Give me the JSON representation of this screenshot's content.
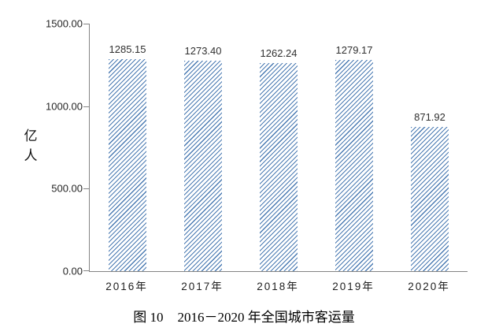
{
  "chart_data": {
    "type": "bar",
    "title": "图 10　2016－2020 年全国城市客运量",
    "caption_prefix": "图 10",
    "caption_text": "2016－2020 年全国城市客运量",
    "categories": [
      "2016年",
      "2017年",
      "2018年",
      "2019年",
      "2020年"
    ],
    "values": [
      1285.15,
      1273.4,
      1262.24,
      1279.17,
      871.92
    ],
    "value_labels": [
      "1285.15",
      "1273.40",
      "1262.24",
      "1279.17",
      "871.92"
    ],
    "ylabel": "亿人",
    "ylabel_chars": [
      "亿",
      "人"
    ],
    "xlabel": "",
    "ylim": [
      0,
      1500
    ],
    "ytick_labels": [
      "1500.00",
      "1000.00",
      "500.00",
      "0.00"
    ],
    "grid": false,
    "legend_position": "none",
    "bar_hatch_color": "#4a7ab2",
    "bar_hatch_style": "diagonal-forward",
    "axis_color": "#848484"
  }
}
